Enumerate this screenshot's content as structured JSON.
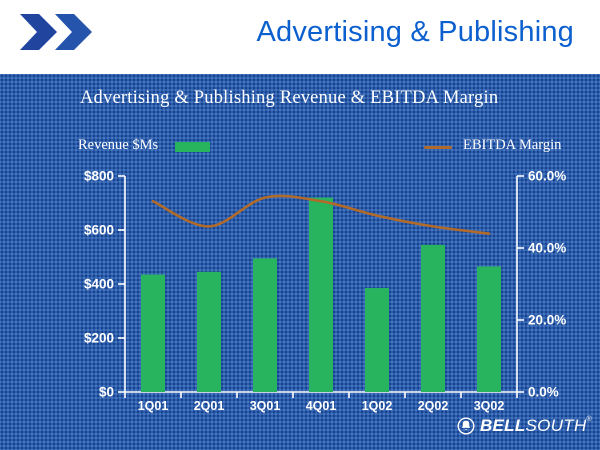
{
  "header": {
    "title": "Advertising & Publishing"
  },
  "panel": {
    "chart_title": "Advertising & Publishing Revenue & EBITDA Margin",
    "legend": {
      "revenue_label": "Revenue $Ms",
      "margin_label": "EBITDA Margin"
    }
  },
  "footer": {
    "brand_bold": "BELL",
    "brand_light": "SOUTH",
    "registered": "®"
  },
  "colors": {
    "background_blue": "#2d5faf",
    "header_title_blue": "#0b5fce",
    "bar_green": "#28b45f",
    "line_orange": "#b06a2a",
    "chevron_navy": "#21459f",
    "axis_text_white": "#ffffff"
  },
  "chart_data": {
    "type": "bar",
    "subtype": "combo-bar-line",
    "title": "Advertising & Publishing Revenue & EBITDA Margin",
    "categories": [
      "1Q01",
      "2Q01",
      "3Q01",
      "4Q01",
      "1Q02",
      "2Q02",
      "3Q02"
    ],
    "series": [
      {
        "name": "Revenue $Ms",
        "type": "bar",
        "axis": "left",
        "unit": "$M",
        "values": [
          435,
          445,
          495,
          720,
          385,
          545,
          465
        ]
      },
      {
        "name": "EBITDA Margin",
        "type": "line",
        "axis": "right",
        "unit": "%",
        "values": [
          53,
          46,
          54,
          53,
          49,
          46,
          44
        ]
      }
    ],
    "left_axis": {
      "label": "Revenue $Ms",
      "min": 0,
      "max": 800,
      "tick_labels": [
        "$0",
        "$200",
        "$400",
        "$600",
        "$800"
      ]
    },
    "right_axis": {
      "label": "EBITDA Margin",
      "min": 0,
      "max": 60,
      "tick_labels": [
        "0.0%",
        "20.0%",
        "40.0%",
        "60.0%"
      ]
    },
    "grid": false,
    "legend_position": "top",
    "line_smoothed": true
  }
}
